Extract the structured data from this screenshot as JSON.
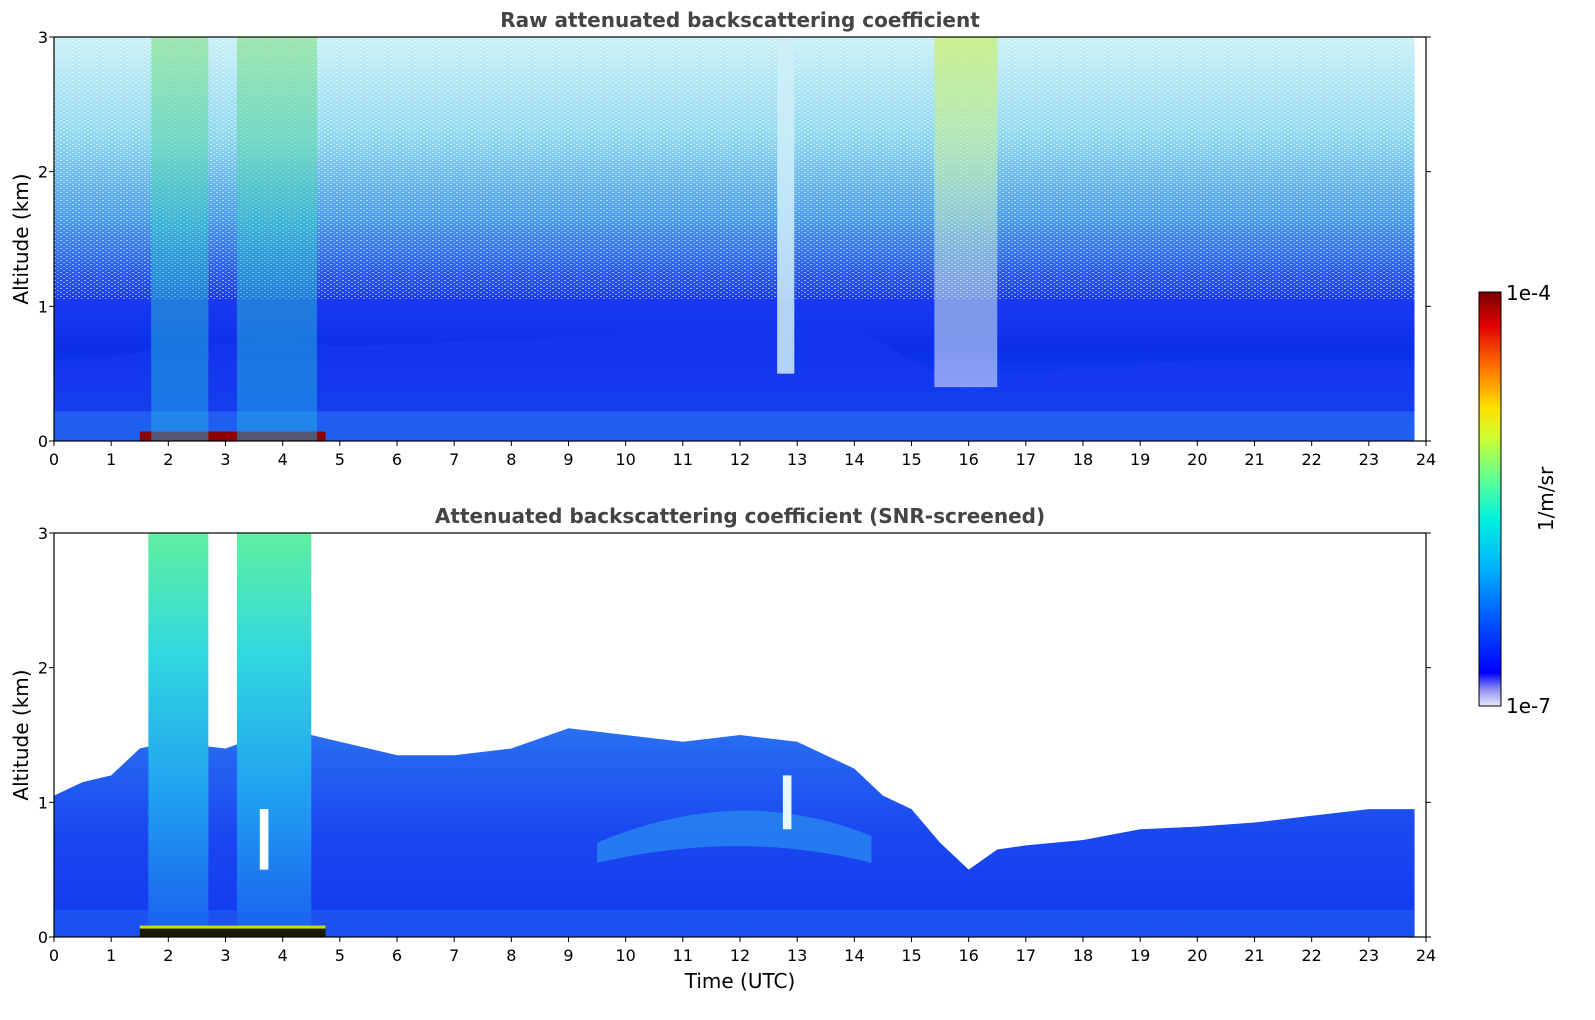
{
  "chart_data": [
    {
      "type": "heatmap",
      "title": "Raw attenuated backscattering coefficient",
      "xlabel": "",
      "ylabel": "Altitude (km)",
      "xlim": [
        0,
        24
      ],
      "ylim": [
        0,
        3
      ],
      "x_ticks": [
        "0",
        "1",
        "2",
        "3",
        "4",
        "5",
        "6",
        "7",
        "8",
        "9",
        "10",
        "11",
        "12",
        "13",
        "14",
        "15",
        "16",
        "17",
        "18",
        "19",
        "20",
        "21",
        "22",
        "23",
        "24"
      ],
      "y_ticks": [
        "0",
        "1",
        "2",
        "3"
      ],
      "data_end_time": 23.8,
      "noise_floor_top_km": [
        [
          0,
          0.6
        ],
        [
          1,
          0.62
        ],
        [
          2,
          0.7
        ],
        [
          3,
          0.72
        ],
        [
          4,
          0.75
        ],
        [
          5,
          0.7
        ],
        [
          6,
          0.72
        ],
        [
          8,
          0.75
        ],
        [
          10,
          0.8
        ],
        [
          12,
          0.82
        ],
        [
          13,
          0.85
        ],
        [
          14,
          0.85
        ],
        [
          15,
          0.6
        ],
        [
          16,
          0.35
        ],
        [
          17,
          0.5
        ],
        [
          18,
          0.55
        ],
        [
          20,
          0.6
        ],
        [
          22,
          0.6
        ],
        [
          23.8,
          0.6
        ]
      ],
      "features": [
        {
          "name": "surface strong return",
          "x_range": [
            1.5,
            4.75
          ],
          "alt_range": [
            0,
            0.07
          ],
          "color": "#8b0000"
        },
        {
          "name": "plume A",
          "x_range": [
            1.7,
            2.7
          ],
          "alt_range": [
            0,
            3
          ]
        },
        {
          "name": "plume B",
          "x_range": [
            3.2,
            4.6
          ],
          "alt_range": [
            0,
            3
          ]
        },
        {
          "name": "streak",
          "x_range": [
            12.65,
            12.95
          ],
          "alt_range": [
            0.5,
            3
          ]
        },
        {
          "name": "plume C",
          "x_range": [
            15.4,
            16.5
          ],
          "alt_range": [
            0.4,
            3
          ]
        }
      ]
    },
    {
      "type": "heatmap",
      "title": "Attenuated backscattering coefficient (SNR-screened)",
      "xlabel": "Time (UTC)",
      "ylabel": "Altitude (km)",
      "xlim": [
        0,
        24
      ],
      "ylim": [
        0,
        3
      ],
      "x_ticks": [
        "0",
        "1",
        "2",
        "3",
        "4",
        "5",
        "6",
        "7",
        "8",
        "9",
        "10",
        "11",
        "12",
        "13",
        "14",
        "15",
        "16",
        "17",
        "18",
        "19",
        "20",
        "21",
        "22",
        "23",
        "24"
      ],
      "y_ticks": [
        "0",
        "1",
        "2",
        "3"
      ],
      "data_end_time": 23.8,
      "layer_top_km": [
        [
          0,
          1.05
        ],
        [
          0.5,
          1.15
        ],
        [
          1,
          1.2
        ],
        [
          1.5,
          1.4
        ],
        [
          2,
          1.45
        ],
        [
          3,
          1.4
        ],
        [
          4,
          1.55
        ],
        [
          5,
          1.45
        ],
        [
          6,
          1.35
        ],
        [
          7,
          1.35
        ],
        [
          8,
          1.4
        ],
        [
          9,
          1.55
        ],
        [
          10,
          1.5
        ],
        [
          11,
          1.45
        ],
        [
          12,
          1.5
        ],
        [
          13,
          1.45
        ],
        [
          14,
          1.25
        ],
        [
          14.5,
          1.05
        ],
        [
          15,
          0.95
        ],
        [
          15.5,
          0.7
        ],
        [
          16,
          0.5
        ],
        [
          16.5,
          0.65
        ],
        [
          17,
          0.68
        ],
        [
          18,
          0.72
        ],
        [
          19,
          0.8
        ],
        [
          20,
          0.82
        ],
        [
          21,
          0.85
        ],
        [
          22,
          0.9
        ],
        [
          23,
          0.95
        ],
        [
          23.8,
          0.95
        ]
      ],
      "plumes": [
        {
          "x_range": [
            1.65,
            2.7
          ],
          "top_km": 3.0
        },
        {
          "x_range": [
            3.2,
            4.5
          ],
          "top_km": 3.0
        }
      ],
      "surface_return": {
        "x_range": [
          1.5,
          4.75
        ],
        "alt_range": [
          0,
          0.07
        ]
      }
    }
  ],
  "colorbar": {
    "label": "1/m/sr",
    "min_label": "1e-7",
    "max_label": "1e-4",
    "min": 1e-07,
    "max": 0.0001,
    "scale": "log",
    "colormap": "jet"
  }
}
